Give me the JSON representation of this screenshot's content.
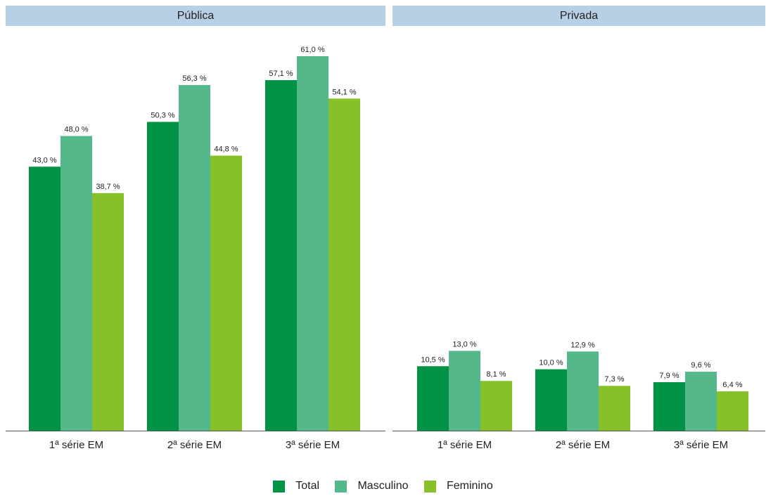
{
  "chart_data": {
    "type": "bar",
    "legend": [
      "Total",
      "Masculino",
      "Feminino"
    ],
    "colors": {
      "Total": "#009245",
      "Masculino": "#54b88a",
      "Feminino": "#86c129"
    },
    "panels": [
      {
        "title": "Pública",
        "categories": [
          "1ª série EM",
          "2ª série EM",
          "3ª série EM"
        ],
        "series": [
          {
            "name": "Total",
            "values": [
              43.0,
              50.3,
              57.1
            ],
            "labels": [
              "43,0 %",
              "50,3 %",
              "57,1 %"
            ]
          },
          {
            "name": "Masculino",
            "values": [
              48.0,
              56.3,
              61.0
            ],
            "labels": [
              "48,0 %",
              "56,3 %",
              "61,0 %"
            ]
          },
          {
            "name": "Feminino",
            "values": [
              38.7,
              44.8,
              54.1
            ],
            "labels": [
              "38,7 %",
              "44,8 %",
              "54,1 %"
            ]
          }
        ]
      },
      {
        "title": "Privada",
        "categories": [
          "1ª série EM",
          "2ª série EM",
          "3ª série EM"
        ],
        "series": [
          {
            "name": "Total",
            "values": [
              10.5,
              10.0,
              7.9
            ],
            "labels": [
              "10,5 %",
              "10,0 %",
              "7,9 %"
            ]
          },
          {
            "name": "Masculino",
            "values": [
              13.0,
              12.9,
              9.6
            ],
            "labels": [
              "13,0 %",
              "12,9 %",
              "9,6 %"
            ]
          },
          {
            "name": "Feminino",
            "values": [
              8.1,
              7.3,
              6.4
            ],
            "labels": [
              "8,1 %",
              "7,3 %",
              "6,4 %"
            ]
          }
        ]
      }
    ],
    "ylim": [
      0,
      61.0
    ],
    "grid": false,
    "legend_position": "bottom"
  }
}
